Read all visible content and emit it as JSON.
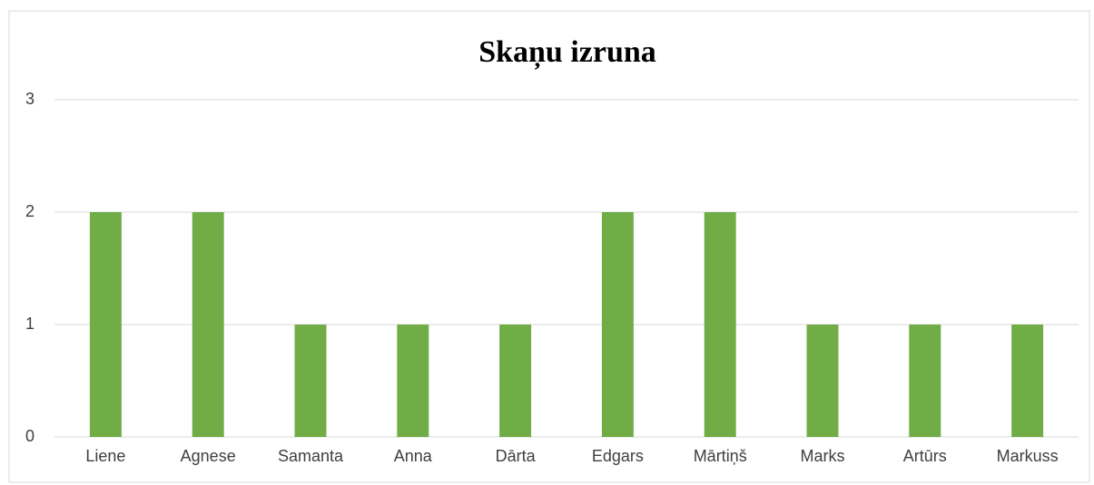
{
  "chart_data": {
    "type": "bar",
    "title": "Skaņu izruna",
    "categories": [
      "Liene",
      "Agnese",
      "Samanta",
      "Anna",
      "Dārta",
      "Edgars",
      "Mārtiņš",
      "Marks",
      "Artūrs",
      "Markuss"
    ],
    "values": [
      2,
      2,
      1,
      1,
      1,
      2,
      2,
      1,
      1,
      1
    ],
    "color": "#70ad47",
    "ylim": [
      0,
      3
    ],
    "yticks": [
      0,
      1,
      2,
      3
    ],
    "grid": true
  }
}
